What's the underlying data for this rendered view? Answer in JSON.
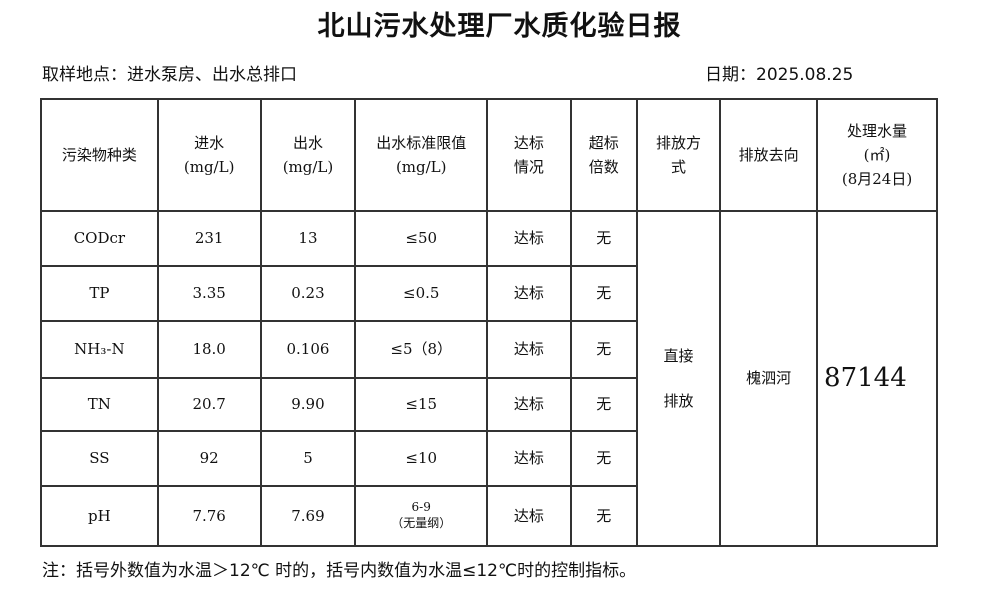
{
  "title": "北山污水处理厂水质化验日报",
  "location": "取样地点：进水泵房、出水总排口",
  "date": "日期：2025.08.25",
  "headers": {
    "pollutant": "污染物种类",
    "inflow": "进水",
    "outflow": "出水",
    "unit": "(mg/L)",
    "limit": "出水标准限值",
    "compliance_1": "达标",
    "compliance_2": "情况",
    "exceed_1": "超标",
    "exceed_2": "倍数",
    "method_1": "排放方",
    "method_2": "式",
    "destination": "排放去向",
    "volume_1": "处理水量",
    "volume_2": "(㎡)",
    "volume_3": "(8月24日)"
  },
  "rows": [
    {
      "name": "CODcr",
      "in": "231",
      "out": "13",
      "limit": "≤50",
      "status": "达标",
      "exceed": "无"
    },
    {
      "name": "TP",
      "in": "3.35",
      "out": "0.23",
      "limit": "≤0.5",
      "status": "达标",
      "exceed": "无"
    },
    {
      "name": "NH₃-N",
      "in": "18.0",
      "out": "0.106",
      "limit": "≤5（8）",
      "status": "达标",
      "exceed": "无"
    },
    {
      "name": "TN",
      "in": "20.7",
      "out": "9.90",
      "limit": "≤15",
      "status": "达标",
      "exceed": "无"
    },
    {
      "name": "SS",
      "in": "92",
      "out": "5",
      "limit": "≤10",
      "status": "达标",
      "exceed": "无"
    },
    {
      "name": "pH",
      "in": "7.76",
      "out": "7.69",
      "limit": "6-9",
      "limit_note": "（无量纲）",
      "status": "达标",
      "exceed": "无"
    }
  ],
  "method_1": "直接",
  "method_2": "排放",
  "destination": "槐泗河",
  "volume": "87144",
  "note": "注：括号外数值为水温＞12℃ 时的，括号内数值为水温≤12℃时的控制指标。"
}
